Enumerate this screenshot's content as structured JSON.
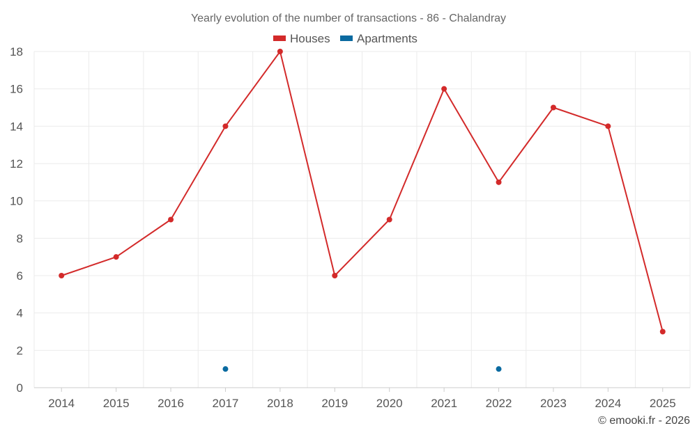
{
  "chart_data": {
    "type": "line",
    "title": "Yearly evolution of the number of transactions - 86 - Chalandray",
    "categories": [
      "2014",
      "2015",
      "2016",
      "2017",
      "2018",
      "2019",
      "2020",
      "2021",
      "2022",
      "2023",
      "2024",
      "2025"
    ],
    "series": [
      {
        "name": "Houses",
        "color": "#d32a2a",
        "values": [
          6,
          7,
          9,
          14,
          18,
          6,
          9,
          16,
          11,
          15,
          14,
          3
        ]
      },
      {
        "name": "Apartments",
        "color": "#0a6aa0",
        "values": [
          null,
          null,
          null,
          1,
          null,
          null,
          null,
          null,
          1,
          null,
          null,
          null
        ]
      }
    ],
    "ylim": [
      0,
      18
    ],
    "yticks": [
      0,
      2,
      4,
      6,
      8,
      10,
      12,
      14,
      16,
      18
    ],
    "xlabel": "",
    "ylabel": "",
    "grid": true,
    "legend_position": "top-center"
  },
  "credit": "© emooki.fr - 2026"
}
